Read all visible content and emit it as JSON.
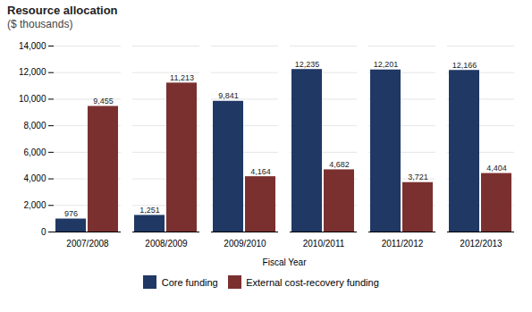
{
  "chart_data": {
    "type": "bar",
    "title": "Resource allocation",
    "subtitle": "($ thousands)",
    "xlabel": "Fiscal Year",
    "categories": [
      "2007/2008",
      "2008/2009",
      "2009/2010",
      "2010/2011",
      "2011/2012",
      "2012/2013"
    ],
    "series": [
      {
        "name": "Core funding",
        "color": "#1F3864",
        "values": [
          976,
          1251,
          9841,
          12235,
          12201,
          12166
        ],
        "value_labels": [
          "976",
          "1,251",
          "9,841",
          "12,235",
          "12,201",
          "12,166"
        ]
      },
      {
        "name": "External cost-recovery funding",
        "color": "#7B3030",
        "values": [
          9455,
          11213,
          4164,
          4682,
          3721,
          4404
        ],
        "value_labels": [
          "9,455",
          "11,213",
          "4,164",
          "4,682",
          "3,721",
          "4,404"
        ]
      }
    ],
    "ylim": [
      0,
      14000
    ],
    "yticks": [
      0,
      {
        "value": 2000,
        "label": "2,000"
      },
      {
        "value": 4000,
        "label": "4,000"
      },
      {
        "value": 6000,
        "label": "6,000"
      },
      {
        "value": 8000,
        "label": "8,000"
      },
      {
        "value": 10000,
        "label": "10,000"
      },
      {
        "value": 12000,
        "label": "12,000"
      },
      {
        "value": 14000,
        "label": "14,000"
      }
    ],
    "grid": true,
    "legend": "bottom",
    "data_labels": true
  }
}
